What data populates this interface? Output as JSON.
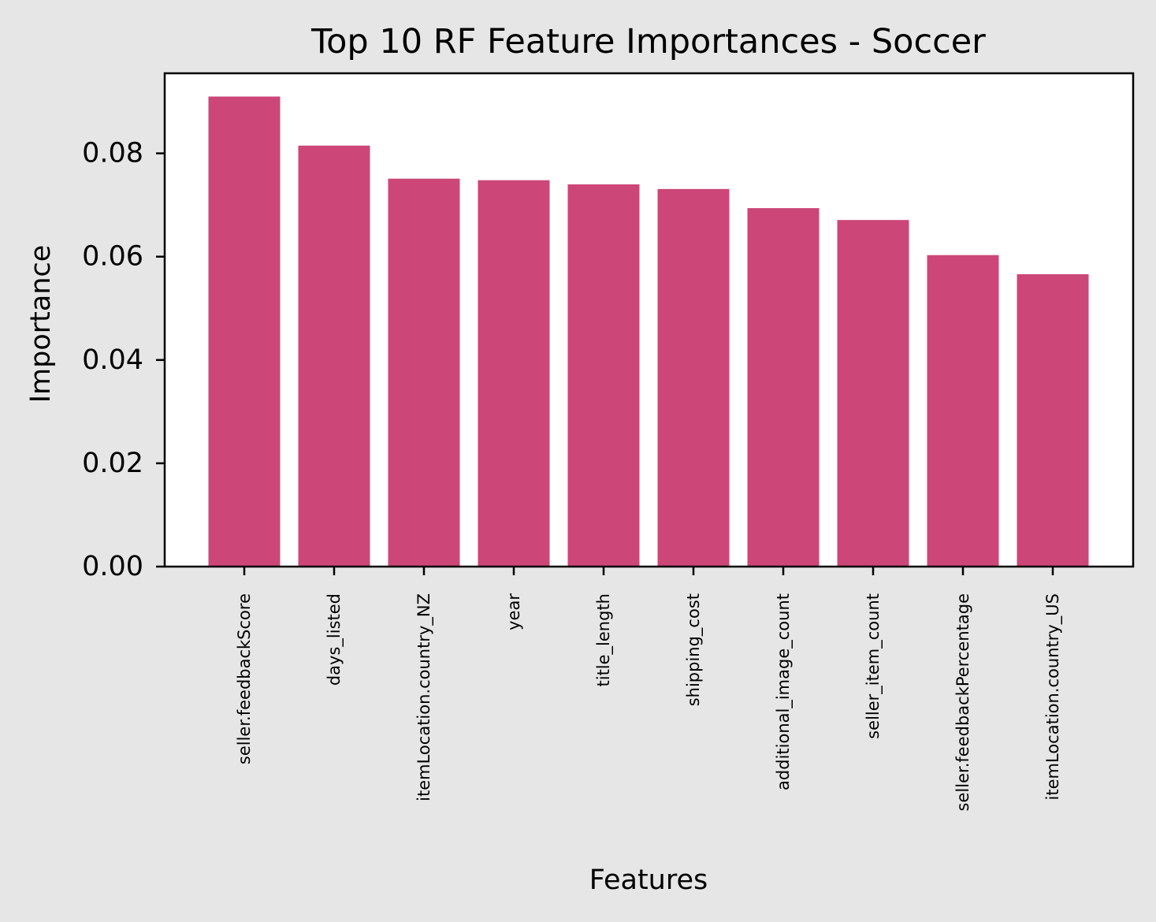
{
  "chart_data": {
    "type": "bar",
    "title": "Top 10 RF Feature Importances - Soccer",
    "xlabel": "Features",
    "ylabel": "Importance",
    "categories": [
      "seller.feedbackScore",
      "days_listed",
      "itemLocation.country_NZ",
      "year",
      "title_length",
      "shipping_cost",
      "additional_image_count",
      "seller_item_count",
      "seller.feedbackPercentage",
      "itemLocation.country_US"
    ],
    "values": [
      0.091,
      0.0815,
      0.0751,
      0.0748,
      0.074,
      0.0731,
      0.0694,
      0.0671,
      0.0603,
      0.0566
    ],
    "ylim": [
      0,
      0.0955
    ],
    "yticks": [
      0.0,
      0.02,
      0.04,
      0.06,
      0.08
    ],
    "ytick_labels": [
      "0.00",
      "0.02",
      "0.04",
      "0.06",
      "0.08"
    ],
    "grid": false,
    "legend": "none",
    "colors": {
      "bar": "#cc4778",
      "figure_background": "#e6e6e6",
      "plot_background": "#ffffff",
      "axis": "#000000"
    }
  }
}
